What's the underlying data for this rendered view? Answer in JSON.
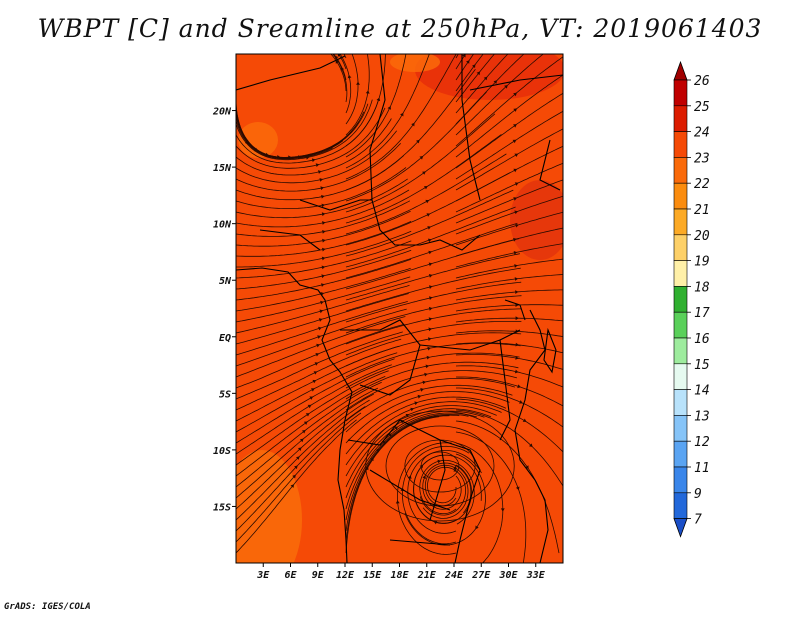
{
  "title": "WBPT [C] and Sreamline at 250hPa, VT: 2019061403",
  "footer": "GrADS: IGES/COLA",
  "map": {
    "variable": "WBPT [C]",
    "level": "250hPa",
    "valid_time": "2019061403",
    "fill_color": "#f54a06",
    "lon_range": [
      0,
      36
    ],
    "lat_range": [
      -20,
      25
    ],
    "x_ticks": [
      "3E",
      "6E",
      "9E",
      "12E",
      "15E",
      "18E",
      "21E",
      "24E",
      "27E",
      "30E",
      "33E"
    ],
    "y_ticks": [
      "20N",
      "15N",
      "10N",
      "5N",
      "EQ",
      "5S",
      "10S",
      "15S"
    ]
  },
  "colorbar": {
    "labels": [
      "26",
      "25",
      "24",
      "23",
      "22",
      "21",
      "20",
      "19",
      "18",
      "17",
      "16",
      "15",
      "14",
      "13",
      "12",
      "11",
      "9",
      "7"
    ],
    "colors": [
      "#c00000",
      "#dc1c00",
      "#f54a06",
      "#fa6a0a",
      "#fb8c0e",
      "#fcaa26",
      "#fdd068",
      "#fff0a8",
      "#30b030",
      "#5ad05a",
      "#9eec9e",
      "#e6faf0",
      "#b8e2fb",
      "#86c4f8",
      "#5aa4f2",
      "#3a86ea",
      "#2268da"
    ],
    "top_arrow_color": "#a00000",
    "bottom_arrow_color": "#1a4fc8"
  }
}
